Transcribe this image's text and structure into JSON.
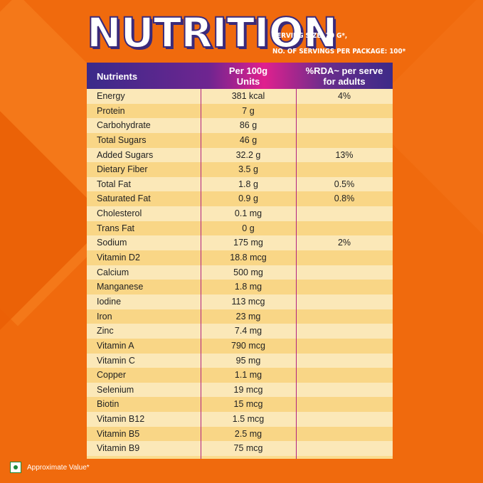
{
  "title": "NUTRITION",
  "serving": {
    "line1": "SERVING SIZE: 20 G*,",
    "line2": "NO. OF SERVINGS PER PACKAGE: 100*"
  },
  "table": {
    "headers": {
      "nutrients": "Nutrients",
      "per100_line1": "Per 100g",
      "per100_line2": "Units",
      "rda_line1": "%RDA~ per serve",
      "rda_line2": "for adults"
    },
    "rows": [
      {
        "name": "Energy",
        "per100": "381 kcal",
        "rda": "4%"
      },
      {
        "name": "Protein",
        "per100": "7 g",
        "rda": ""
      },
      {
        "name": "Carbohydrate",
        "per100": "86 g",
        "rda": ""
      },
      {
        "name": "Total Sugars",
        "per100": "46 g",
        "rda": ""
      },
      {
        "name": "Added Sugars",
        "per100": "32.2 g",
        "rda": "13%"
      },
      {
        "name": "Dietary Fiber",
        "per100": "3.5 g",
        "rda": ""
      },
      {
        "name": "Total Fat",
        "per100": "1.8 g",
        "rda": "0.5%"
      },
      {
        "name": "Saturated Fat",
        "per100": "0.9 g",
        "rda": "0.8%"
      },
      {
        "name": "Cholesterol",
        "per100": "0.1 mg",
        "rda": ""
      },
      {
        "name": "Trans Fat",
        "per100": "0 g",
        "rda": ""
      },
      {
        "name": "Sodium",
        "per100": "175 mg",
        "rda": "2%"
      },
      {
        "name": "Vitamin D2",
        "per100": "18.8 mcg",
        "rda": ""
      },
      {
        "name": "Calcium",
        "per100": "500 mg",
        "rda": ""
      },
      {
        "name": "Manganese",
        "per100": "1.8 mg",
        "rda": ""
      },
      {
        "name": "Iodine",
        "per100": "113 mcg",
        "rda": ""
      },
      {
        "name": "Iron",
        "per100": "23 mg",
        "rda": ""
      },
      {
        "name": "Zinc",
        "per100": "7.4 mg",
        "rda": ""
      },
      {
        "name": "Vitamin A",
        "per100": "790 mcg",
        "rda": ""
      },
      {
        "name": "Vitamin C",
        "per100": "95 mg",
        "rda": ""
      },
      {
        "name": "Copper",
        "per100": "1.1 mg",
        "rda": ""
      },
      {
        "name": "Selenium",
        "per100": "19 mcg",
        "rda": ""
      },
      {
        "name": "Biotin",
        "per100": "15 mcg",
        "rda": ""
      },
      {
        "name": "Vitamin B12",
        "per100": "1.5 mcg",
        "rda": ""
      },
      {
        "name": "Vitamin B5",
        "per100": "2.5 mg",
        "rda": ""
      },
      {
        "name": "Vitamin B9",
        "per100": "75 mcg",
        "rda": ""
      }
    ]
  },
  "legend": {
    "icon": "veg-mark-icon",
    "text": "Approximate Value*"
  },
  "colors": {
    "background": "#f06a0d",
    "header_purple": "#3a2a8a",
    "header_pink": "#e0208e",
    "row_light": "#fbe8b8",
    "row_dark": "#f9d686",
    "veg_green": "#1e8a3a"
  }
}
